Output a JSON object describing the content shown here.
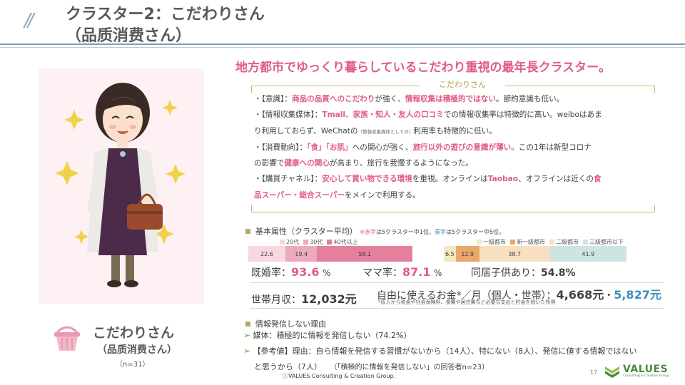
{
  "header": {
    "slash": "//",
    "title_line1": "クラスター2：こだわりさん",
    "title_line2": "（品质消费さん）"
  },
  "persona": {
    "name": "こだわりさん",
    "subtitle": "（品质消费さん）",
    "n": "（n=31）"
  },
  "headline": "地方都市でゆっくり暮らしているこだわり重視の最年長クラスター。",
  "box_label": "こだわりさん",
  "bullets": [
    {
      "a": "・【意識】：",
      "b": "商品の品質へのこだわり",
      "c": "が強く、",
      "d": "情報収集は積極的ではない",
      "e": "。節約意識も低い。"
    },
    {
      "a": "・【情報収集媒体】：",
      "b": "Tmall、家族・知人・友人の口コミ",
      "c": "での情報収集率は特徴的に高い。weiboはあま"
    },
    {
      "a": "り利用しておらず、WeChatの",
      "small": "（情報収集媒体としての）",
      "c": "利用率も特徴的に低い。"
    },
    {
      "a": "・【消費動向】：",
      "b": "「食」「お肌」",
      "c": "への関心が強く、",
      "d": "旅行以外の遊びの意識が薄い",
      "e": "。この1年は新型コロナ"
    },
    {
      "a": "の影響で",
      "b": "健康への関心",
      "c": "が高まり、旅行を我慢するようになった。"
    },
    {
      "a": "・【購買チャネル】：",
      "b": "安心して買い物できる環境",
      "c": "を重視。オンラインは",
      "d": "Taobao",
      "e": "、オフラインは近くの",
      "f": "食"
    },
    {
      "a": "品スーパー・総合スーパー",
      "c": "をメインで利用する。"
    }
  ],
  "attributes": {
    "title": "基本属性（クラスター平均）",
    "note_red": "※赤字",
    "note_red_rest": "は5クラスター中1位、",
    "note_blue": "青字",
    "note_blue_rest": "は5クラスター中5位。",
    "age_legend": [
      "20代",
      "30代",
      "40代以上"
    ],
    "age_values": [
      22.6,
      19.4,
      58.1
    ],
    "city_legend": [
      "一級都市",
      "新一級都市",
      "二級都市",
      "三級都市以下"
    ],
    "city_values": [
      6.5,
      12.9,
      38.7,
      41.9
    ],
    "age_colors": [
      "#f8d7df",
      "#eeaabd",
      "#e47f9c"
    ],
    "city_colors": [
      "#f5e6c4",
      "#e9a769",
      "#f8dfc0",
      "#cfe3e3"
    ]
  },
  "stats": {
    "married_label": "既婚率：",
    "married_value": "93.6",
    "married_unit": "%",
    "mama_label": "ママ率：",
    "mama_value": "87.1",
    "mama_unit": "%",
    "cohabit_label": "同居子供あり：",
    "cohabit_value": "54.8%",
    "income_label": "世帯月収：",
    "income_value": "12,032元",
    "free_money_label": "自由に使えるお金*／月（個人・世帯）：",
    "free_money_personal": "4,668元",
    "free_money_sep": "・",
    "free_money_household": "5,827元",
    "free_money_note": "*収入から税金や社会保険料、食費や居住費など必要な支出と貯金を除いた所得"
  },
  "info": {
    "title": "情報発信しない理由",
    "reason1": "媒体：積極的に情報を発信しない（74.2%）",
    "reason2_line1": "【参考値】理由：自ら情報を発信する習慣がないから（14人）、特にない（8人）、発信に値する情報ではない",
    "reason2_line2": "と思うから（7人）",
    "reason2_note": "（「積極的に情報を発信しない」の回答者n=23）"
  },
  "footer": {
    "copyright": "ⓒVALUES Consulting & Creation Group.",
    "page": "17",
    "logo": "VALUES",
    "logo_sub": "Consulting & Creation Group"
  }
}
